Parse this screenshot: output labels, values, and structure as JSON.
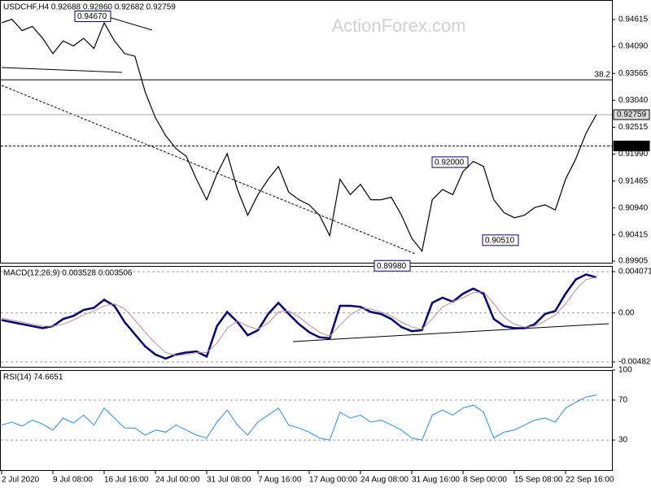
{
  "watermark": "ActionForex.com",
  "chart_data": [
    {
      "type": "line",
      "title": "USDCHF,H4  0.92688 0.92860 0.92682 0.92759",
      "color": "#000000",
      "values": [
        0.9455,
        0.9462,
        0.944,
        0.9448,
        0.9425,
        0.9395,
        0.942,
        0.941,
        0.9425,
        0.9405,
        0.9455,
        0.942,
        0.9395,
        0.939,
        0.932,
        0.927,
        0.9235,
        0.921,
        0.9195,
        0.915,
        0.911,
        0.916,
        0.92,
        0.913,
        0.908,
        0.912,
        0.915,
        0.9175,
        0.9125,
        0.911,
        0.91,
        0.908,
        0.904,
        0.915,
        0.912,
        0.914,
        0.911,
        0.911,
        0.9115,
        0.908,
        0.9035,
        0.901,
        0.911,
        0.913,
        0.912,
        0.9165,
        0.9185,
        0.9175,
        0.911,
        0.9085,
        0.9075,
        0.908,
        0.9095,
        0.91,
        0.909,
        0.915,
        0.919,
        0.924,
        0.9276
      ],
      "ylim": [
        0.89873,
        0.94964
      ],
      "yticks": [
        {
          "value": 0.94615,
          "label": "0.94615"
        },
        {
          "value": 0.9409,
          "label": "0.94090"
        },
        {
          "value": 0.93565,
          "label": "0.93565"
        },
        {
          "value": 0.9304,
          "label": "0.93040"
        },
        {
          "value": 0.92515,
          "label": "0.92515"
        },
        {
          "value": 0.9199,
          "label": "0.91990"
        },
        {
          "value": 0.91465,
          "label": "0.91465"
        },
        {
          "value": 0.9094,
          "label": "0.90940"
        },
        {
          "value": 0.90415,
          "label": "0.90415"
        },
        {
          "value": 0.89905,
          "label": "0.89905"
        }
      ],
      "levels": [
        {
          "value": 0.9344,
          "label": "38.2"
        },
        {
          "value": 0.9215,
          "label": "0.92150"
        },
        {
          "value": 0.92759,
          "label": "0.92759"
        }
      ],
      "annotations": [
        {
          "value": 0.9467,
          "label": "0.94670"
        },
        {
          "value": 0.92,
          "label": "0.92000"
        },
        {
          "value": 0.9051,
          "label": "0.90510"
        },
        {
          "value": 0.8998,
          "label": "0.89980"
        }
      ]
    },
    {
      "type": "line",
      "title": "MACD(12,26,9) 0.003528 0.003506",
      "series": [
        {
          "name": "MACD",
          "color": "#000080",
          "values": [
            -0.0007,
            -0.0009,
            -0.0011,
            -0.0013,
            -0.0015,
            -0.0013,
            -0.0006,
            -0.0003,
            0.0003,
            0.0005,
            0.0013,
            0.0007,
            -0.0009,
            -0.0021,
            -0.0033,
            -0.0041,
            -0.0045,
            -0.0041,
            -0.0039,
            -0.0038,
            -0.0043,
            -0.0013,
            0.0001,
            -0.0009,
            -0.0022,
            -0.0017,
            -0.0001,
            0.001,
            -0.0001,
            -0.0011,
            -0.0019,
            -0.0024,
            -0.0025,
            0.0007,
            0.0007,
            0.0006,
            0.0001,
            -0.0001,
            -0.0006,
            -0.0014,
            -0.0018,
            -0.0017,
            0.001,
            0.0015,
            0.0011,
            0.0019,
            0.0024,
            0.0019,
            -0.0006,
            -0.0013,
            -0.0015,
            -0.0015,
            -0.0011,
            -0.0001,
            0.0002,
            0.0019,
            0.0033,
            0.0038,
            0.0035
          ]
        },
        {
          "name": "Signal",
          "color": "#c09090",
          "values": [
            -0.0005,
            -0.0007,
            -0.0009,
            -0.0011,
            -0.0013,
            -0.0013,
            -0.0011,
            -0.0007,
            -0.0002,
            0.0002,
            0.0007,
            0.0009,
            0.0004,
            -0.0007,
            -0.0019,
            -0.003,
            -0.0039,
            -0.0042,
            -0.0041,
            -0.0039,
            -0.0039,
            -0.003,
            -0.0015,
            -0.0008,
            -0.0013,
            -0.0016,
            -0.001,
            0.0001,
            0.0002,
            -0.0004,
            -0.0012,
            -0.0019,
            -0.0023,
            -0.0012,
            -0.0002,
            0.0004,
            0.0004,
            0.0001,
            -0.0003,
            -0.0009,
            -0.0014,
            -0.0016,
            -0.0006,
            0.0006,
            0.0011,
            0.0015,
            0.002,
            0.0021,
            0.0009,
            -0.0004,
            -0.0011,
            -0.0014,
            -0.0013,
            -0.0008,
            -0.0002,
            0.0009,
            0.0023,
            0.0033,
            0.0035
          ]
        }
      ],
      "ylim": [
        -0.00531,
        0.00463
      ],
      "yticks": [
        0.004071,
        {
          "value": 0,
          "label": "0.00"
        },
        -0.004829
      ]
    },
    {
      "type": "line",
      "title": "RSI(14) 74.6651",
      "color": "#1e90ff",
      "categories": [
        "2 Jul 2020",
        null,
        null,
        null,
        null,
        "9 Jul 08:00",
        null,
        null,
        null,
        null,
        "16 Jul 16:00",
        null,
        null,
        null,
        null,
        "24 Jul 00:00",
        null,
        null,
        null,
        null,
        "31 Jul 08:00",
        null,
        null,
        null,
        null,
        "7 Aug 16:00",
        null,
        null,
        null,
        null,
        "17 Aug 00:00",
        null,
        null,
        null,
        null,
        "24 Aug 08:00",
        null,
        null,
        null,
        null,
        "31 Aug 16:00",
        null,
        null,
        null,
        null,
        "8 Sep 00:00",
        null,
        null,
        null,
        null,
        "15 Sep 08:00",
        null,
        null,
        null,
        null,
        "22 Sep 16:00",
        null,
        null,
        null
      ],
      "values": [
        45,
        48,
        44,
        50,
        46,
        40,
        52,
        47,
        55,
        45,
        62,
        52,
        42,
        42,
        35,
        40,
        38,
        45,
        40,
        35,
        32,
        48,
        60,
        45,
        35,
        48,
        55,
        62,
        45,
        42,
        38,
        32,
        30,
        58,
        52,
        55,
        48,
        50,
        45,
        40,
        32,
        30,
        55,
        60,
        55,
        62,
        65,
        58,
        32,
        38,
        40,
        45,
        50,
        52,
        48,
        62,
        68,
        73,
        75
      ],
      "ylim": [
        0,
        100
      ],
      "yticks": [
        100,
        70,
        30
      ]
    }
  ]
}
